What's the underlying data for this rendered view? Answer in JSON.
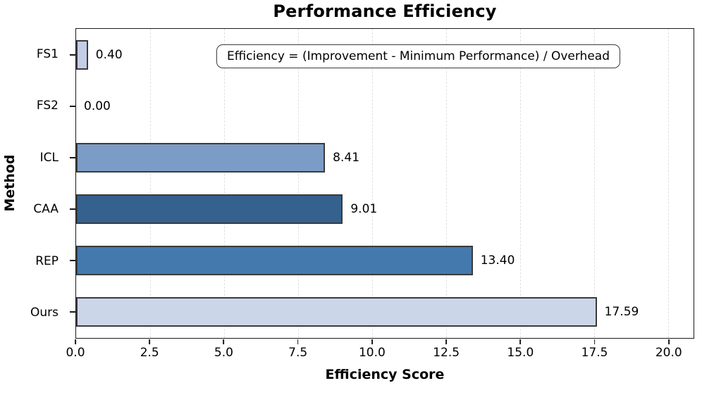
{
  "title": "Performance Efficiency",
  "annotation_text": "Efficiency = (Improvement - Minimum Performance) / Overhead",
  "chart_data": {
    "type": "bar",
    "orientation": "horizontal",
    "title": "Performance Efficiency",
    "xlabel": "Efficiency Score",
    "ylabel": "Method",
    "categories": [
      "FS1",
      "FS2",
      "ICL",
      "CAA",
      "REP",
      "Ours"
    ],
    "values": [
      0.4,
      0.0,
      8.41,
      9.01,
      13.4,
      17.59
    ],
    "value_labels": [
      "0.40",
      "0.00",
      "8.41",
      "9.01",
      "13.40",
      "17.59"
    ],
    "bar_colors": [
      "#c3cde6",
      "#c3cde6",
      "#7b9cc6",
      "#35618e",
      "#4479ae",
      "#ccd6e9"
    ],
    "bar_edge_color": "#3a3a3a",
    "xticks": [
      0.0,
      2.5,
      5.0,
      7.5,
      10.0,
      12.5,
      15.0,
      17.5,
      20.0
    ],
    "xtick_labels": [
      "0.0",
      "2.5",
      "5.0",
      "7.5",
      "10.0",
      "12.5",
      "15.0",
      "17.5",
      "20.0"
    ],
    "xlim": [
      0,
      20.86
    ],
    "grid": "vertical-dashed",
    "grid_color": "#dfdfdf",
    "annotation": "Efficiency = (Improvement - Minimum Performance) / Overhead",
    "legend": null
  }
}
